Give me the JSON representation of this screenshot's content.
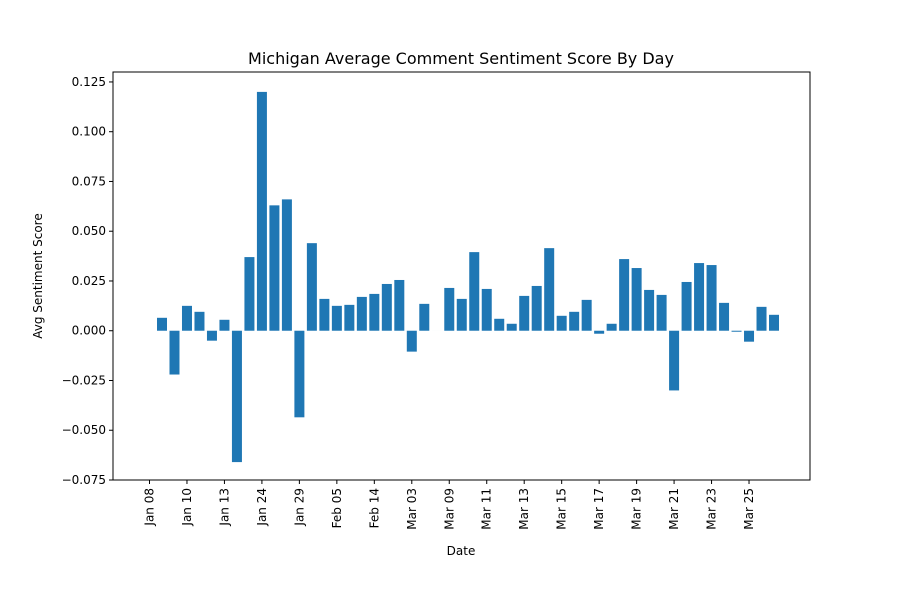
{
  "chart_data": {
    "type": "bar",
    "title": "Michigan Average Comment Sentiment Score By Day",
    "xlabel": "Date",
    "ylabel": "Avg Sentiment Score",
    "ylim": [
      -0.075,
      0.13
    ],
    "yticks": [
      -0.075,
      -0.05,
      -0.025,
      0.0,
      0.025,
      0.05,
      0.075,
      0.1,
      0.125
    ],
    "ytick_labels": [
      "−0.075",
      "−0.050",
      "−0.025",
      "0.000",
      "0.025",
      "0.050",
      "0.075",
      "0.100",
      "0.125"
    ],
    "xtick_labels": [
      "Jan 08",
      "Jan 10",
      "Jan 13",
      "Jan 24",
      "Jan 29",
      "Feb 05",
      "Feb 14",
      "Mar 03",
      "Mar 09",
      "Mar 11",
      "Mar 13",
      "Mar 15",
      "Mar 17",
      "Mar 19",
      "Mar 21",
      "Mar 23",
      "Mar 25"
    ],
    "bar_color": "#1f77b4",
    "grid": false,
    "values": [
      0.0065,
      -0.022,
      0.0125,
      0.0095,
      -0.005,
      0.0055,
      -0.066,
      0.037,
      0.12,
      0.063,
      0.066,
      -0.0435,
      0.044,
      0.016,
      0.0125,
      0.013,
      0.017,
      0.0185,
      0.0235,
      0.0255,
      -0.0105,
      0.0135,
      0.0,
      0.0215,
      0.016,
      0.0395,
      0.021,
      0.006,
      0.0035,
      0.0175,
      0.0225,
      0.0415,
      0.0075,
      0.0095,
      0.0155,
      -0.0015,
      0.0035,
      0.036,
      0.0315,
      0.0205,
      0.018,
      -0.03,
      0.0245,
      0.034,
      0.033,
      0.014,
      -0.0005,
      -0.0055,
      0.012,
      0.008
    ]
  }
}
